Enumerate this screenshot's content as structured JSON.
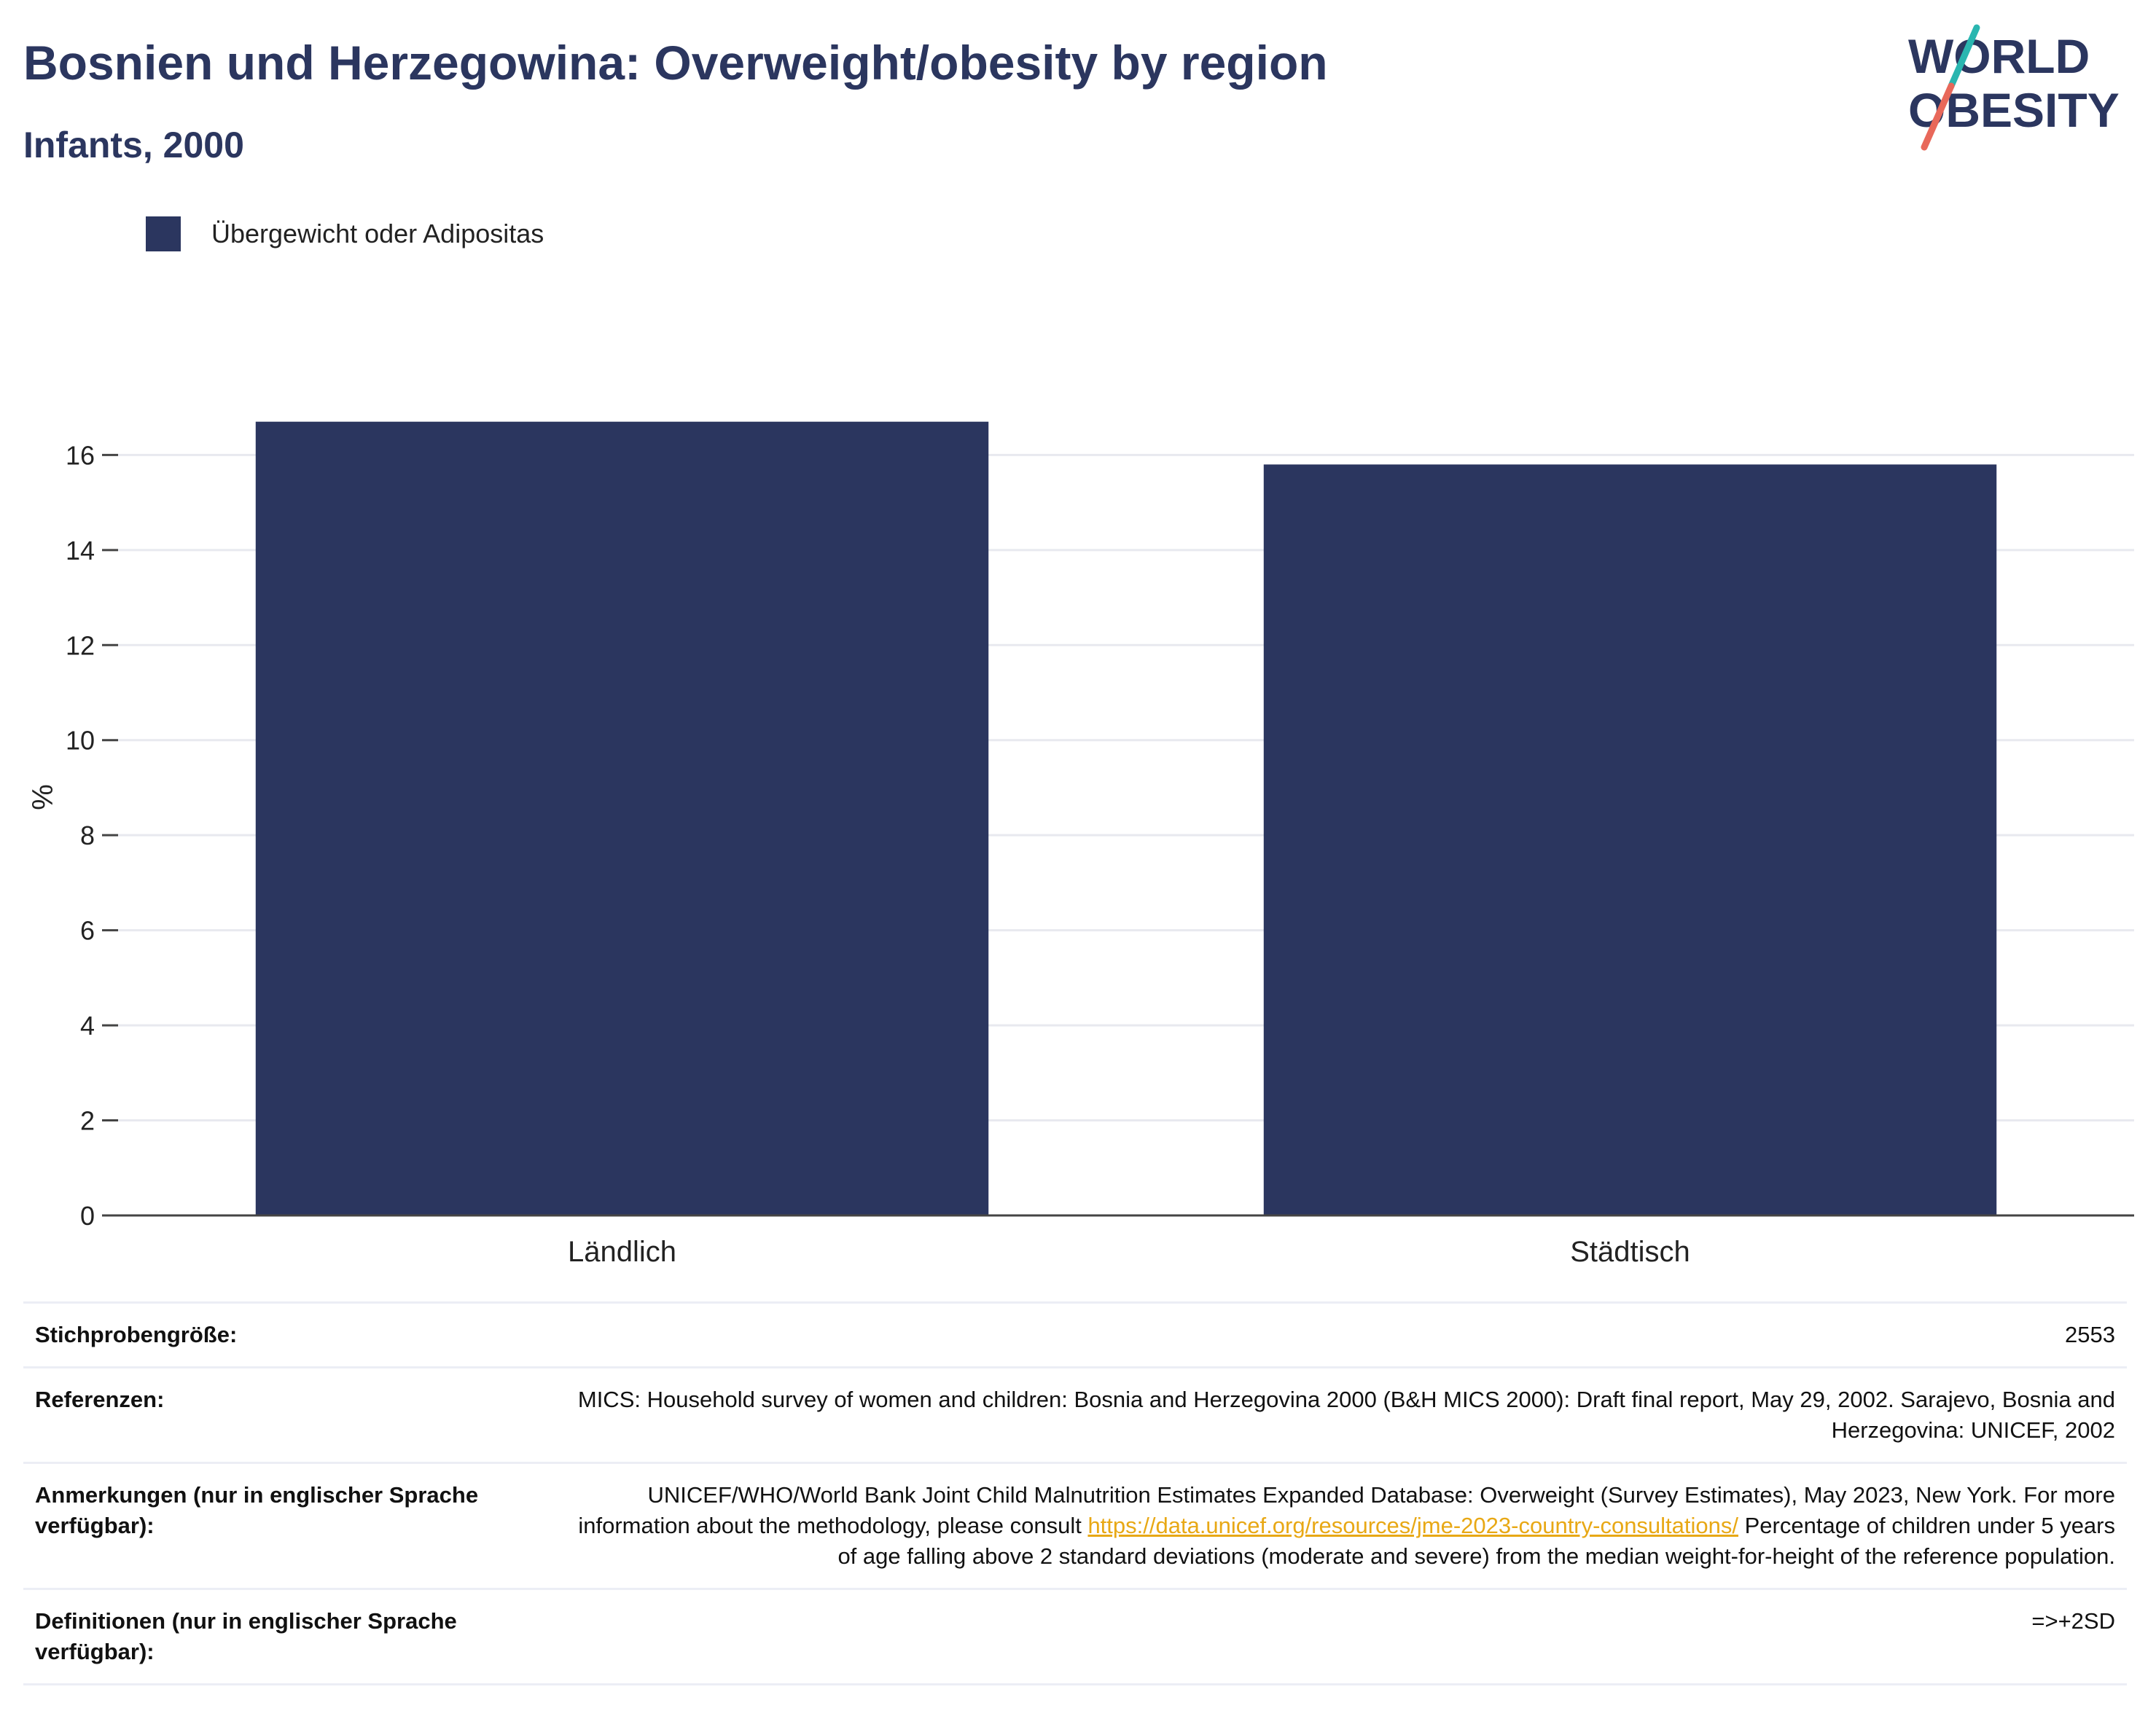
{
  "header": {
    "title": "Bosnien und Herzegowina: Overweight/obesity by region",
    "subtitle": "Infants, 2000"
  },
  "logo": {
    "line1": "WORLD",
    "line2": "OBESITY",
    "slash_colors": [
      "#2ab6b0",
      "#e8685a"
    ],
    "text_color": "#2b365f"
  },
  "legend": {
    "label": "Übergewicht oder Adipositas",
    "color": "#2b365f"
  },
  "chart_data": {
    "type": "bar",
    "categories": [
      "Ländlich",
      "Städtisch"
    ],
    "series": [
      {
        "name": "Übergewicht oder Adipositas",
        "values": [
          16.7,
          15.8
        ],
        "color": "#2b365f"
      }
    ],
    "title": "Bosnien und Herzegowina: Overweight/obesity by region",
    "subtitle": "Infants, 2000",
    "xlabel": "",
    "ylabel": "%",
    "ylim": [
      0,
      17.6
    ],
    "yticks": [
      0,
      2,
      4,
      6,
      8,
      10,
      12,
      14,
      16
    ],
    "grid": true,
    "legend_position": "top-left"
  },
  "info": {
    "sample_size": {
      "label": "Stichprobengröße:",
      "value": "2553"
    },
    "references": {
      "label": "Referenzen:",
      "value": "MICS: Household survey of women and children: Bosnia and Herzegovina 2000 (B&H MICS 2000): Draft final report, May 29, 2002. Sarajevo, Bosnia and Herzegovina: UNICEF, 2002"
    },
    "notes": {
      "label": "Anmerkungen (nur in englischer Sprache verfügbar):",
      "text_before": "UNICEF/WHO/World Bank Joint Child Malnutrition Estimates Expanded Database: Overweight (Survey Estimates), May 2023, New York. For more information about the methodology, please consult ",
      "link": "https://data.unicef.org/resources/jme-2023-country-consultations/",
      "text_after": " Percentage of children under 5 years of age falling above 2 standard deviations (moderate and severe) from the median weight-for-height of the reference population."
    },
    "definitions": {
      "label": "Definitionen (nur in englischer Sprache verfügbar):",
      "value": "=>+2SD"
    }
  }
}
